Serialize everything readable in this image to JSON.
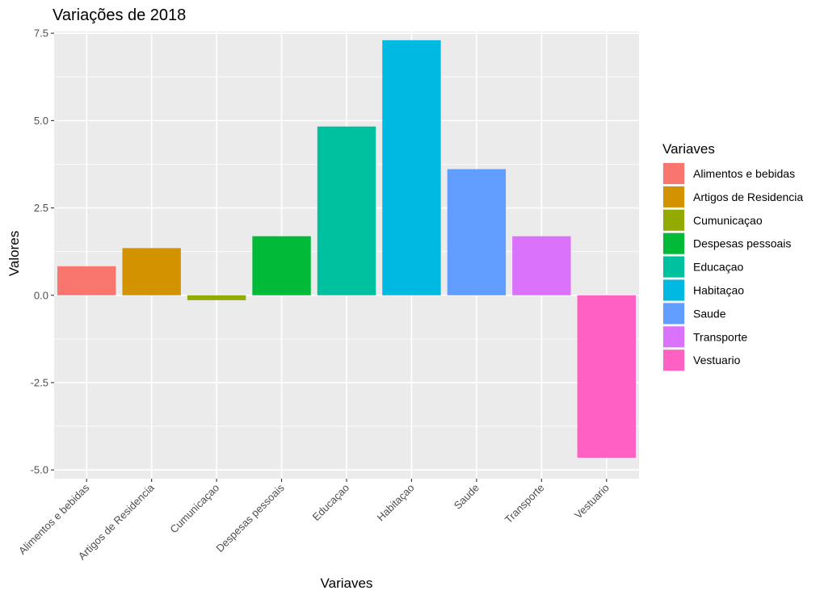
{
  "chart_data": {
    "type": "bar",
    "title": "Variações de 2018",
    "xlabel": "Variaves",
    "ylabel": "Valores",
    "categories": [
      "Alimentos e bebidas",
      "Artigos de Residencia",
      "Cumunicaçao",
      "Despesas pessoais",
      "Educaçao",
      "Habitaçao",
      "Saude",
      "Transporte",
      "Vestuario"
    ],
    "values": [
      0.83,
      1.35,
      -0.14,
      1.69,
      4.83,
      7.3,
      3.61,
      1.69,
      -4.65
    ],
    "colors": [
      "#F8766D",
      "#D39200",
      "#93AA00",
      "#00BA38",
      "#00C19F",
      "#00B9E3",
      "#619CFF",
      "#DB72FB",
      "#FF61C3"
    ],
    "ylim": [
      -5.25,
      7.55
    ],
    "yticks": [
      -5.0,
      -2.5,
      0.0,
      2.5,
      5.0,
      7.5
    ],
    "ytick_labels": [
      "-5.0",
      "-2.5",
      "0.0",
      "2.5",
      "5.0",
      "7.5"
    ],
    "grid": true,
    "panel_background": "#EBEBEB",
    "grid_color": "#FFFFFF",
    "legend": {
      "title": "Variaves",
      "position": "right",
      "entries": [
        "Alimentos e bebidas",
        "Artigos de Residencia",
        "Cumunicaçao",
        "Despesas pessoais",
        "Educaçao",
        "Habitaçao",
        "Saude",
        "Transporte",
        "Vestuario"
      ]
    }
  }
}
